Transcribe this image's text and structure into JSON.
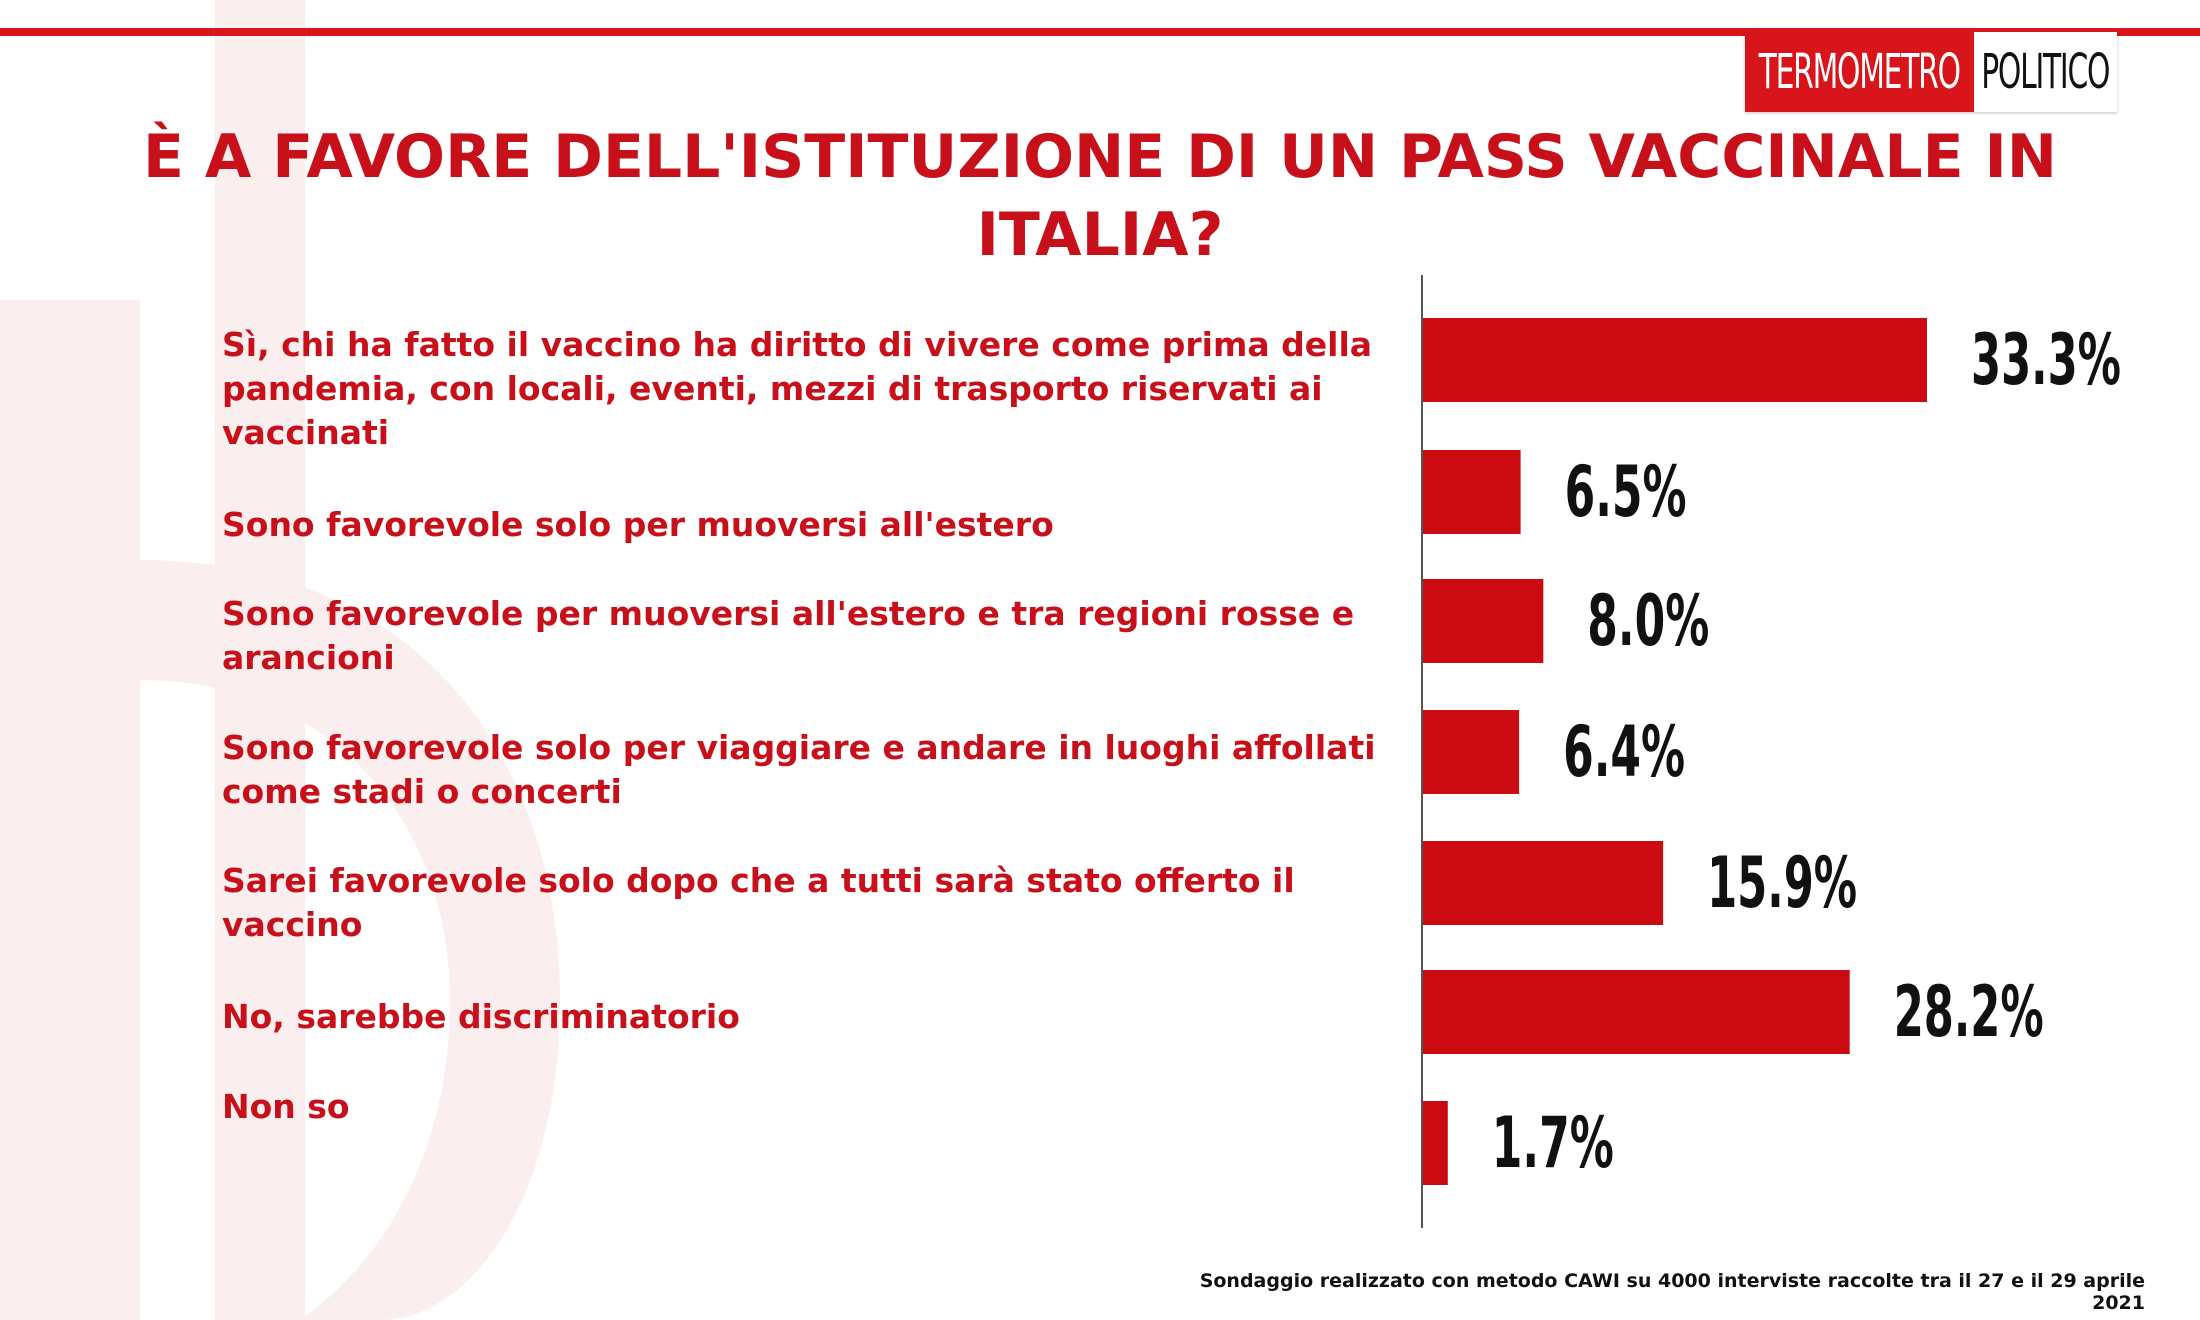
{
  "brand": {
    "left": "TERMOMETRO",
    "right": "POLITICO",
    "accent_color": "#d9151c"
  },
  "title": "È A FAVORE DELL'ISTITUZIONE DI UN PASS VACCINALE IN ITALIA?",
  "footnote": "Sondaggio realizzato con metodo CAWI su 4000 interviste raccolte tra il 27  e il 29 aprile 2021",
  "chart_data": {
    "type": "bar",
    "orientation": "horizontal",
    "title": "È A FAVORE DELL'ISTITUZIONE DI UN PASS VACCINALE IN ITALIA?",
    "categories": [
      "Sì, chi ha fatto il vaccino ha diritto di vivere come prima della pandemia, con locali, eventi, mezzi di trasporto riservati ai vaccinati",
      "Sono favorevole solo per muoversi all'estero",
      "Sono favorevole per muoversi all'estero e tra regioni rosse e arancioni",
      "Sono favorevole solo per viaggiare e andare in luoghi affollati come stadi o concerti",
      "Sarei favorevole solo dopo che a tutti sarà  stato offerto il vaccino",
      "No, sarebbe discriminatorio",
      "Non so"
    ],
    "values": [
      33.3,
      6.5,
      8.0,
      6.4,
      15.9,
      28.2,
      1.7
    ],
    "value_labels": [
      "33.3%",
      "6.5%",
      "8.0%",
      "6.4%",
      "15.9%",
      "28.2%",
      "1.7%"
    ],
    "xlim": [
      0,
      40
    ],
    "bar_color": "#cc0a12",
    "grid": false,
    "legend": "none"
  }
}
